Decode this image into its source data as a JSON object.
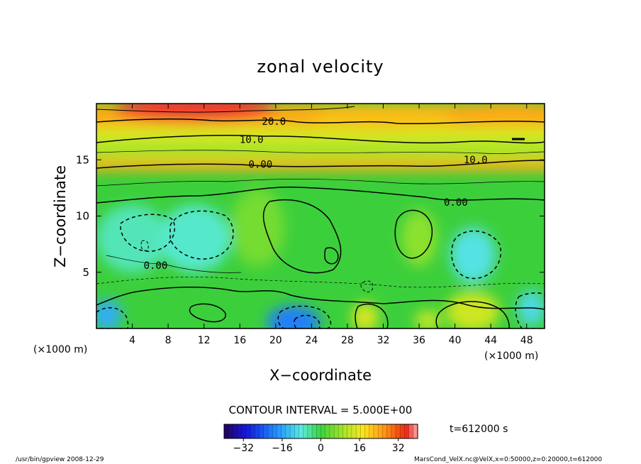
{
  "chart_data": {
    "type": "heatmap",
    "title": "zonal velocity",
    "xlabel": "X−coordinate",
    "ylabel": "Z−coordinate",
    "x_unit": "(×1000 m)",
    "y_unit": "(×1000 m)",
    "xlim": [
      0,
      50
    ],
    "ylim": [
      0,
      20
    ],
    "x_ticks": [
      4,
      8,
      12,
      16,
      20,
      24,
      28,
      32,
      36,
      40,
      44,
      48
    ],
    "y_ticks": [
      5,
      10,
      15
    ],
    "contour_interval_label": "CONTOUR INTERVAL = 5.000E+00",
    "contour_labels": [
      {
        "text": "20.0",
        "x": 19.8,
        "z": 18.1
      },
      {
        "text": "10.0",
        "x": 17.3,
        "z": 16.5
      },
      {
        "text": "10.0",
        "x": 42.3,
        "z": 14.7
      },
      {
        "text": "0.00",
        "x": 18.3,
        "z": 14.3
      },
      {
        "text": "0.00",
        "x": 40.1,
        "z": 10.9
      },
      {
        "text": "0.00",
        "x": 6.6,
        "z": 5.3
      }
    ],
    "colorbar": {
      "min": -40,
      "max": 40,
      "ticks": [
        -32,
        -16,
        0,
        16,
        32
      ]
    },
    "time_label": "t=612000 s"
  },
  "footer": {
    "left": "/usr/bin/gpview   2008-12-29",
    "right": "MarsCond_VelX.nc@VelX,x=0:50000,z=0:20000,t=612000"
  }
}
